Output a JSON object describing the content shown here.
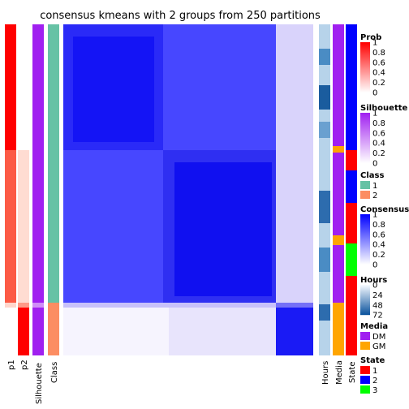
{
  "chart_data": {
    "type": "heatmap",
    "title": "consensus kmeans with 2 groups from 250 partitions",
    "groups": [
      {
        "name": "1",
        "fraction": 0.59
      },
      {
        "name": "2",
        "fraction": 0.41
      }
    ],
    "left_annotations": [
      "p1",
      "p2",
      "Silhouette",
      "Class"
    ],
    "right_annotations": [
      "Hours",
      "Media",
      "State"
    ],
    "legends": [
      {
        "title": "Prob",
        "kind": "continuous",
        "ticks": [
          "1",
          "0.8",
          "0.6",
          "0.4",
          "0.2",
          "0"
        ],
        "colors": [
          "#ff0000",
          "#ffffff"
        ]
      },
      {
        "title": "Silhouette",
        "kind": "continuous",
        "ticks": [
          "1",
          "0.8",
          "0.6",
          "0.4",
          "0.2",
          "0"
        ],
        "colors": [
          "#a020f0",
          "#ffffff"
        ]
      },
      {
        "title": "Class",
        "kind": "discrete",
        "entries": [
          {
            "label": "1",
            "color": "#66c2a5"
          },
          {
            "label": "2",
            "color": "#fc8d62"
          }
        ]
      },
      {
        "title": "Consensus",
        "kind": "continuous",
        "ticks": [
          "1",
          "0.8",
          "0.6",
          "0.4",
          "0.2",
          "0"
        ],
        "colors": [
          "#0000ff",
          "#ffffff"
        ]
      },
      {
        "title": "Hours",
        "kind": "continuous",
        "ticks": [
          "0",
          "24",
          "48",
          "72"
        ],
        "colors": [
          "#f7fbff",
          "#08519c"
        ]
      },
      {
        "title": "Media",
        "kind": "discrete",
        "entries": [
          {
            "label": "DM",
            "color": "#a020f0"
          },
          {
            "label": "GM",
            "color": "#ffa500"
          }
        ]
      },
      {
        "title": "State",
        "kind": "discrete",
        "entries": [
          {
            "label": "1",
            "color": "#ff0000"
          },
          {
            "label": "2",
            "color": "#0000ff"
          },
          {
            "label": "3",
            "color": "#00ff00"
          }
        ]
      }
    ]
  }
}
